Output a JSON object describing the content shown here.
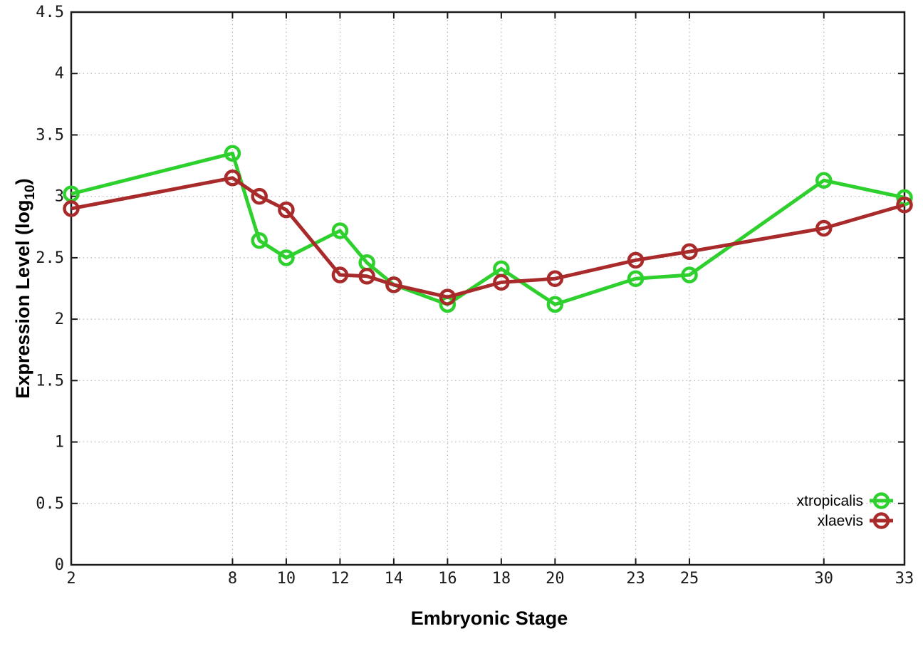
{
  "chart_data": {
    "type": "line",
    "title": "",
    "xlabel": "Embryonic Stage",
    "ylabel": "Expression Level (log10)",
    "ylabel_parts": {
      "pre": "Expression Level (log",
      "sub": "10",
      "post": ")"
    },
    "xlim": [
      2,
      33
    ],
    "ylim": [
      0,
      4.5
    ],
    "grid": true,
    "legend_position": "bottom-right",
    "x": [
      2,
      8,
      9,
      10,
      12,
      13,
      14,
      16,
      18,
      20,
      23,
      25,
      30,
      33
    ],
    "series": [
      {
        "name": "xtropicalis",
        "color": "#2dd02d",
        "values": [
          3.02,
          3.35,
          2.64,
          2.5,
          2.72,
          2.46,
          2.28,
          2.12,
          2.41,
          2.12,
          2.33,
          2.36,
          3.13,
          2.99
        ]
      },
      {
        "name": "xlaevis",
        "color": "#a82a2a",
        "values": [
          2.9,
          3.15,
          3.0,
          2.89,
          2.36,
          2.35,
          2.28,
          2.18,
          2.3,
          2.33,
          2.48,
          2.55,
          2.74,
          2.93
        ]
      }
    ],
    "xticks": [
      2,
      8,
      10,
      12,
      14,
      16,
      18,
      20,
      23,
      25,
      30,
      33
    ],
    "xtick_labels": [
      "2",
      "8",
      "10",
      "12",
      "14",
      "16",
      "18",
      "20",
      "23",
      "25",
      "30",
      "33"
    ],
    "yticks": [
      0,
      0.5,
      1,
      1.5,
      2,
      2.5,
      3,
      3.5,
      4,
      4.5
    ],
    "ytick_labels": [
      "0",
      "0.5",
      "1",
      "1.5",
      "2",
      "2.5",
      "3",
      "3.5",
      "4",
      "4.5"
    ]
  },
  "style": {
    "accent_green": "#2dd02d",
    "accent_red": "#a82a2a",
    "grid_color": "#b4b4b4",
    "axis_color": "#1a1a1a",
    "text_color": "#000000",
    "background": "#ffffff"
  }
}
